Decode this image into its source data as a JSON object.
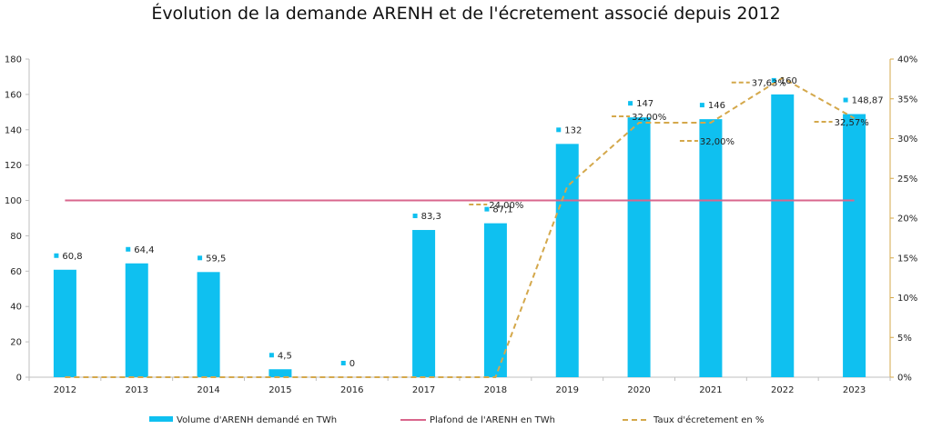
{
  "chart_data": {
    "type": "bar",
    "title": "Évolution de la demande ARENH et de l'écretement associé depuis 2012",
    "categories": [
      "2012",
      "2013",
      "2014",
      "2015",
      "2016",
      "2017",
      "2018",
      "2019",
      "2020",
      "2021",
      "2022",
      "2023"
    ],
    "series": [
      {
        "name": "Volume d'ARENH demandé en TWh",
        "type": "bar",
        "axis": "left",
        "color": "#0fc0f0",
        "values": [
          60.8,
          64.4,
          59.5,
          4.5,
          0,
          83.3,
          87.1,
          132,
          147,
          146,
          160,
          148.87
        ],
        "labels": [
          "60,8",
          "64,4",
          "59,5",
          "4,5",
          "0",
          "83,3",
          "87,1",
          "132",
          "147",
          "146",
          "160",
          "148,87"
        ]
      },
      {
        "name": "Plafond de l'ARENH en TWh",
        "type": "line",
        "axis": "left",
        "color": "#d9668c",
        "values": [
          100,
          100,
          100,
          100,
          100,
          100,
          100,
          100,
          100,
          100,
          100,
          100
        ]
      },
      {
        "name": "Taux d'écretement en %",
        "type": "line",
        "style": "dashed",
        "axis": "right",
        "color": "#d4a84b",
        "values": [
          0,
          0,
          0,
          0,
          0,
          0,
          0,
          24.0,
          32.0,
          32.0,
          37.63,
          32.57
        ],
        "labels": [
          "",
          "",
          "",
          "",
          "",
          "",
          "",
          "24,00%",
          "32,00%",
          "32,00%",
          "37,63%",
          "32,57%"
        ]
      }
    ],
    "y_left": {
      "ylim": [
        0,
        180
      ],
      "ticks": [
        "0",
        "20",
        "40",
        "60",
        "80",
        "100",
        "120",
        "140",
        "160",
        "180"
      ]
    },
    "y_right": {
      "ylim": [
        0,
        40
      ],
      "ticks": [
        "0%",
        "5%",
        "10%",
        "15%",
        "20%",
        "25%",
        "30%",
        "35%",
        "40%"
      ]
    },
    "grid": false,
    "legend_position": "bottom"
  }
}
